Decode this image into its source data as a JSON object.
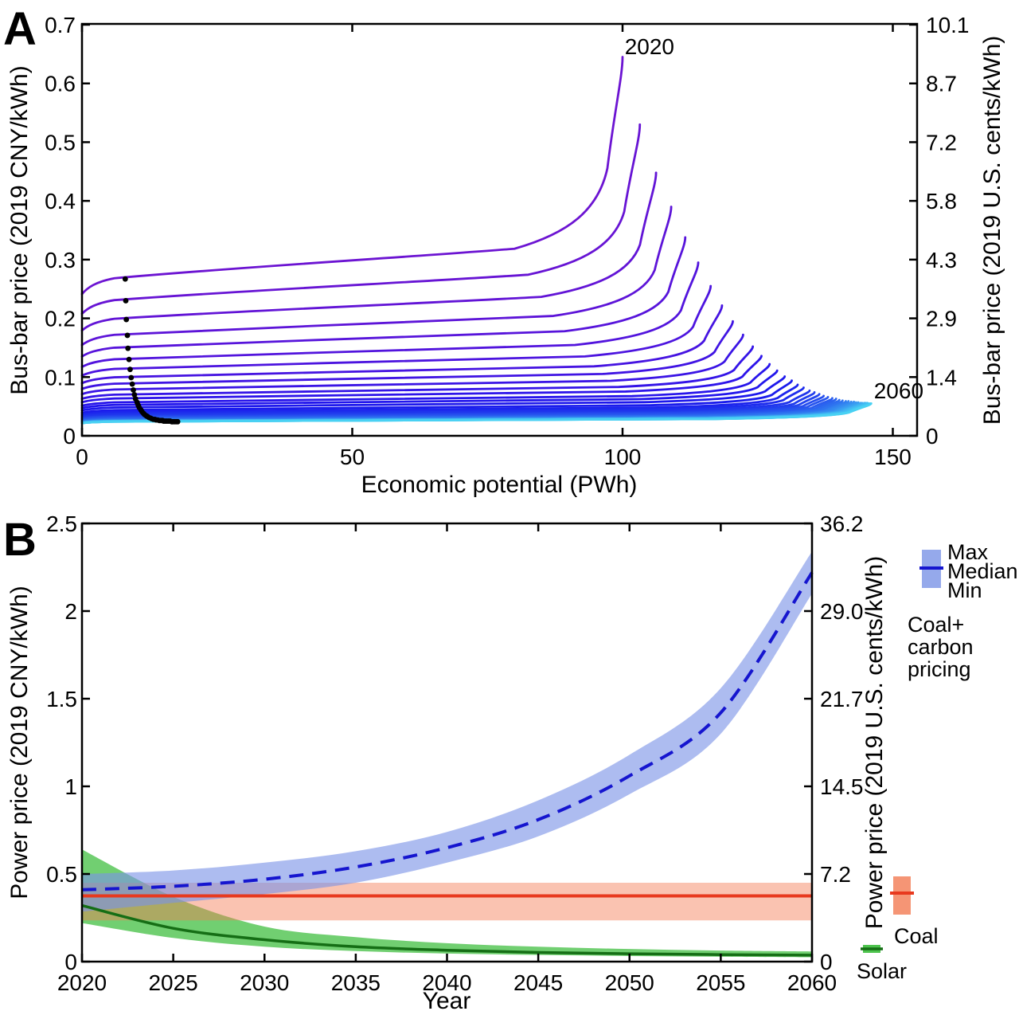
{
  "panel_labels": {
    "a": "A",
    "b": "B"
  },
  "chart_data": [
    {
      "type": "line",
      "panel": "A",
      "title": "",
      "xlabel": "Economic potential (PWh)",
      "ylabel_left": "Bus-bar price (2019 CNY/kWh)",
      "ylabel_right": "Bus-bar price (2019 U.S. cents/kWh)",
      "xlim": [
        0,
        153.5
      ],
      "ylim_left": [
        0,
        0.7
      ],
      "ylim_right": [
        0,
        10.1
      ],
      "x_ticks": [
        "0",
        "50",
        "100",
        "150"
      ],
      "y_ticks_left": [
        "0.7",
        "0.6",
        "0.5",
        "0.4",
        "0.3",
        "0.2",
        "0.1",
        "0"
      ],
      "y_ticks_right": [
        "10.1",
        "8.7",
        "7.2",
        "5.8",
        "4.3",
        "2.9",
        "1.4",
        "0"
      ],
      "grid": false,
      "color_gradient": {
        "start_year_color": "#6A13D2",
        "end_year_color": "#49C9F4"
      },
      "series_description": "Annual solar PV bus-bar price supply curves for 2020-2060 (one curve per year, purple to cyan); black dots mark annual deployment points",
      "supply_curves": {
        "columns": [
          "year",
          "start_price_cny_kwh",
          "max_potential_pwh",
          "peak_price_cny_kwh"
        ],
        "rows": [
          [
            2020,
            0.245,
            100.0,
            0.645
          ],
          [
            2021,
            0.211,
            103.2,
            0.53
          ],
          [
            2022,
            0.182,
            106.2,
            0.448
          ],
          [
            2023,
            0.157,
            109.0,
            0.39
          ],
          [
            2024,
            0.137,
            111.6,
            0.338
          ],
          [
            2025,
            0.119,
            114.0,
            0.295
          ],
          [
            2026,
            0.104,
            116.3,
            0.255
          ],
          [
            2027,
            0.091,
            118.4,
            0.222
          ],
          [
            2028,
            0.081,
            120.4,
            0.195
          ],
          [
            2029,
            0.072,
            122.3,
            0.172
          ],
          [
            2030,
            0.064,
            124.1,
            0.152
          ],
          [
            2031,
            0.058,
            125.7,
            0.136
          ],
          [
            2032,
            0.052,
            127.2,
            0.122
          ],
          [
            2033,
            0.048,
            128.6,
            0.111
          ],
          [
            2034,
            0.044,
            130.0,
            0.101
          ],
          [
            2035,
            0.04,
            131.3,
            0.094
          ],
          [
            2036,
            0.037,
            132.4,
            0.087
          ],
          [
            2037,
            0.035,
            133.5,
            0.082
          ],
          [
            2038,
            0.033,
            134.6,
            0.077
          ],
          [
            2039,
            0.031,
            135.5,
            0.074
          ],
          [
            2040,
            0.03,
            136.4,
            0.071
          ],
          [
            2041,
            0.029,
            137.2,
            0.068
          ],
          [
            2042,
            0.028,
            138.0,
            0.066
          ],
          [
            2043,
            0.027,
            138.8,
            0.064
          ],
          [
            2044,
            0.026,
            139.5,
            0.063
          ],
          [
            2045,
            0.026,
            140.1,
            0.061
          ],
          [
            2046,
            0.025,
            140.7,
            0.06
          ],
          [
            2047,
            0.024,
            141.3,
            0.059
          ],
          [
            2048,
            0.024,
            141.8,
            0.059
          ],
          [
            2049,
            0.024,
            142.3,
            0.058
          ],
          [
            2050,
            0.023,
            142.8,
            0.058
          ],
          [
            2051,
            0.023,
            143.2,
            0.057
          ],
          [
            2052,
            0.023,
            143.6,
            0.057
          ],
          [
            2053,
            0.023,
            144.0,
            0.056
          ],
          [
            2054,
            0.023,
            144.3,
            0.056
          ],
          [
            2055,
            0.023,
            144.7,
            0.056
          ],
          [
            2056,
            0.023,
            145.0,
            0.056
          ],
          [
            2057,
            0.022,
            145.3,
            0.056
          ],
          [
            2058,
            0.022,
            145.5,
            0.055
          ],
          [
            2059,
            0.022,
            145.8,
            0.055
          ],
          [
            2060,
            0.022,
            146.0,
            0.055
          ]
        ]
      },
      "deployment_curve_points": [
        [
          8.0,
          0.267
        ],
        [
          8.1,
          0.23
        ],
        [
          8.2,
          0.198
        ],
        [
          8.4,
          0.171
        ],
        [
          8.5,
          0.149
        ],
        [
          8.7,
          0.13
        ],
        [
          8.9,
          0.113
        ],
        [
          9.1,
          0.099
        ],
        [
          9.3,
          0.088
        ],
        [
          9.5,
          0.078
        ],
        [
          9.7,
          0.07
        ],
        [
          9.9,
          0.063
        ],
        [
          10.2,
          0.057
        ],
        [
          10.4,
          0.052
        ],
        [
          10.6,
          0.048
        ],
        [
          10.9,
          0.044
        ],
        [
          11.1,
          0.041
        ],
        [
          11.4,
          0.038
        ],
        [
          11.6,
          0.036
        ],
        [
          11.9,
          0.034
        ],
        [
          12.1,
          0.033
        ],
        [
          12.4,
          0.031
        ],
        [
          12.7,
          0.03
        ],
        [
          12.9,
          0.029
        ],
        [
          13.2,
          0.028
        ],
        [
          13.5,
          0.028
        ],
        [
          13.7,
          0.027
        ],
        [
          14.0,
          0.027
        ],
        [
          14.3,
          0.026
        ],
        [
          14.6,
          0.026
        ],
        [
          14.9,
          0.026
        ],
        [
          15.1,
          0.025
        ],
        [
          15.4,
          0.025
        ],
        [
          15.7,
          0.025
        ],
        [
          16.0,
          0.025
        ],
        [
          16.3,
          0.025
        ],
        [
          16.6,
          0.024
        ],
        [
          16.8,
          0.024
        ],
        [
          17.1,
          0.024
        ],
        [
          17.4,
          0.024
        ],
        [
          17.7,
          0.024
        ]
      ],
      "annotations": [
        {
          "text": "2020",
          "x": 100.4,
          "y": 0.65,
          "anchor": "start"
        },
        {
          "text": "2060",
          "x": 146.5,
          "y": 0.064,
          "anchor": "start"
        }
      ]
    },
    {
      "type": "area",
      "panel": "B",
      "title": "",
      "xlabel": "Year",
      "ylabel_left": "Power price (2019 CNY/kWh)",
      "ylabel_right": "Power price (2019 U.S. cents/kWh)",
      "xlim": [
        2020,
        2060
      ],
      "ylim_left": [
        0,
        2.5
      ],
      "ylim_right": [
        0,
        36.2
      ],
      "x_ticks": [
        "2020",
        "2025",
        "2030",
        "2035",
        "2040",
        "2045",
        "2050",
        "2055",
        "2060"
      ],
      "y_ticks_left": [
        "2.5",
        "2",
        "1.5",
        "1",
        "0.5",
        "0"
      ],
      "y_ticks_right": [
        "36.2",
        "29.0",
        "21.7",
        "14.5",
        "7.2",
        "0"
      ],
      "grid": false,
      "series": [
        {
          "name": "Coal+carbon pricing",
          "line_style": "dashed",
          "line_color": "#1515CF",
          "band_color": "#7B93E6",
          "band_opacity": 0.62,
          "years": [
            2020,
            2025,
            2030,
            2035,
            2040,
            2045,
            2050,
            2055,
            2060
          ],
          "median": [
            0.41,
            0.43,
            0.47,
            0.54,
            0.65,
            0.81,
            1.06,
            1.42,
            2.22
          ],
          "max": [
            0.5,
            0.52,
            0.565,
            0.63,
            0.74,
            0.92,
            1.18,
            1.56,
            2.34
          ],
          "min": [
            0.285,
            0.335,
            0.385,
            0.45,
            0.565,
            0.715,
            0.955,
            1.3,
            2.1
          ]
        },
        {
          "name": "Coal",
          "line_style": "solid",
          "line_color": "#E8391E",
          "band_color": "#F37B52",
          "band_opacity": 0.45,
          "years": [
            2020,
            2060
          ],
          "median": [
            0.375,
            0.375
          ],
          "max": [
            0.45,
            0.45
          ],
          "min": [
            0.235,
            0.235
          ]
        },
        {
          "name": "Solar",
          "line_style": "solid",
          "line_color": "#156E15",
          "band_color": "#2EB82E",
          "band_opacity": 0.68,
          "years": [
            2020,
            2025,
            2030,
            2035,
            2040,
            2045,
            2050,
            2055,
            2060
          ],
          "median": [
            0.32,
            0.19,
            0.125,
            0.085,
            0.065,
            0.052,
            0.045,
            0.04,
            0.037
          ],
          "max": [
            0.64,
            0.37,
            0.2,
            0.14,
            0.105,
            0.085,
            0.072,
            0.063,
            0.058
          ],
          "min": [
            0.22,
            0.135,
            0.085,
            0.06,
            0.046,
            0.038,
            0.032,
            0.028,
            0.025
          ]
        }
      ],
      "legend": {
        "max_label": "Max",
        "median_label": "Median",
        "min_label": "Min",
        "coal_carbon_lines": [
          "Coal+",
          "carbon",
          "pricing"
        ],
        "coal_label": "Coal",
        "solar_label": "Solar"
      }
    }
  ]
}
